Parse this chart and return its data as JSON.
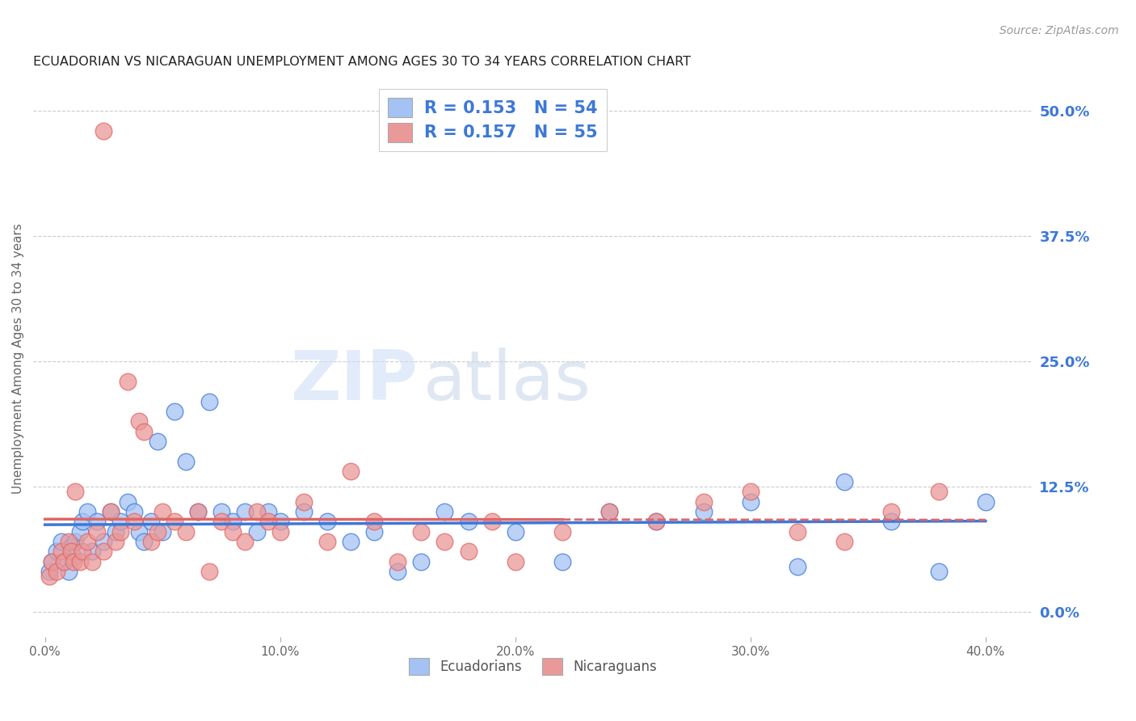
{
  "title": "ECUADORIAN VS NICARAGUAN UNEMPLOYMENT AMONG AGES 30 TO 34 YEARS CORRELATION CHART",
  "source": "Source: ZipAtlas.com",
  "ylabel": "Unemployment Among Ages 30 to 34 years",
  "xlabel_ticks": [
    "0.0%",
    "10.0%",
    "20.0%",
    "30.0%",
    "40.0%"
  ],
  "xlabel_vals": [
    0.0,
    10.0,
    20.0,
    30.0,
    40.0
  ],
  "ylabel_ticks": [
    "0.0%",
    "12.5%",
    "25.0%",
    "37.5%",
    "50.0%"
  ],
  "ylabel_vals": [
    0.0,
    12.5,
    25.0,
    37.5,
    50.0
  ],
  "xlim": [
    -0.5,
    42.0
  ],
  "ylim": [
    -2.5,
    53.0
  ],
  "blue_color": "#a4c2f4",
  "pink_color": "#ea9999",
  "blue_line_color": "#3c78d8",
  "pink_line_color": "#e06666",
  "R_blue": 0.153,
  "N_blue": 54,
  "R_pink": 0.157,
  "N_pink": 55,
  "label_color": "#3c78d8",
  "watermark_zip": "ZIP",
  "watermark_atlas": "atlas",
  "ecu_x": [
    0.2,
    0.3,
    0.5,
    0.7,
    0.8,
    1.0,
    1.1,
    1.2,
    1.3,
    1.5,
    1.6,
    1.8,
    2.0,
    2.2,
    2.5,
    2.8,
    3.0,
    3.2,
    3.5,
    3.8,
    4.0,
    4.2,
    4.5,
    4.8,
    5.0,
    5.5,
    6.0,
    6.5,
    7.0,
    7.5,
    8.0,
    8.5,
    9.0,
    9.5,
    10.0,
    11.0,
    12.0,
    13.0,
    14.0,
    15.0,
    16.0,
    17.0,
    18.0,
    20.0,
    22.0,
    24.0,
    26.0,
    28.0,
    30.0,
    32.0,
    34.0,
    36.0,
    38.0,
    40.0
  ],
  "ecu_y": [
    4.0,
    5.0,
    6.0,
    7.0,
    5.0,
    4.0,
    6.5,
    5.5,
    7.0,
    8.0,
    9.0,
    10.0,
    6.0,
    9.0,
    7.0,
    10.0,
    8.0,
    9.0,
    11.0,
    10.0,
    8.0,
    7.0,
    9.0,
    17.0,
    8.0,
    20.0,
    15.0,
    10.0,
    21.0,
    10.0,
    9.0,
    10.0,
    8.0,
    10.0,
    9.0,
    10.0,
    9.0,
    7.0,
    8.0,
    4.0,
    5.0,
    10.0,
    9.0,
    8.0,
    5.0,
    10.0,
    9.0,
    10.0,
    11.0,
    4.5,
    13.0,
    9.0,
    4.0,
    11.0
  ],
  "nic_x": [
    0.2,
    0.3,
    0.5,
    0.7,
    0.8,
    1.0,
    1.1,
    1.2,
    1.3,
    1.5,
    1.6,
    1.8,
    2.0,
    2.2,
    2.5,
    2.8,
    3.0,
    3.2,
    3.5,
    3.8,
    4.0,
    4.2,
    4.5,
    4.8,
    5.0,
    5.5,
    6.0,
    6.5,
    7.0,
    7.5,
    8.0,
    8.5,
    9.0,
    9.5,
    10.0,
    11.0,
    12.0,
    13.0,
    14.0,
    15.0,
    16.0,
    17.0,
    18.0,
    19.0,
    20.0,
    22.0,
    24.0,
    26.0,
    28.0,
    30.0,
    32.0,
    34.0,
    36.0,
    38.0,
    2.5
  ],
  "nic_y": [
    3.5,
    5.0,
    4.0,
    6.0,
    5.0,
    7.0,
    6.0,
    5.0,
    12.0,
    5.0,
    6.0,
    7.0,
    5.0,
    8.0,
    6.0,
    10.0,
    7.0,
    8.0,
    23.0,
    9.0,
    19.0,
    18.0,
    7.0,
    8.0,
    10.0,
    9.0,
    8.0,
    10.0,
    4.0,
    9.0,
    8.0,
    7.0,
    10.0,
    9.0,
    8.0,
    11.0,
    7.0,
    14.0,
    9.0,
    5.0,
    8.0,
    7.0,
    6.0,
    9.0,
    5.0,
    8.0,
    10.0,
    9.0,
    11.0,
    12.0,
    8.0,
    7.0,
    10.0,
    12.0,
    48.0
  ]
}
